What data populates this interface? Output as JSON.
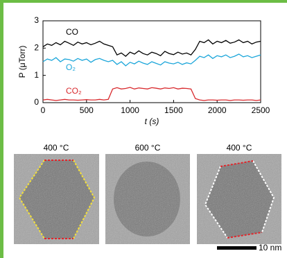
{
  "chart_data": {
    "type": "line",
    "ylabel": "P (μTorr)",
    "xlabel": "t (s)",
    "x": [
      0,
      50,
      100,
      150,
      200,
      250,
      300,
      350,
      400,
      450,
      500,
      550,
      600,
      650,
      700,
      750,
      800,
      850,
      900,
      950,
      1000,
      1050,
      1100,
      1150,
      1200,
      1250,
      1300,
      1350,
      1400,
      1450,
      1500,
      1550,
      1600,
      1650,
      1700,
      1750,
      1800,
      1850,
      1900,
      1950,
      2000,
      2050,
      2100,
      2150,
      2200,
      2250,
      2300,
      2350,
      2400,
      2450,
      2500
    ],
    "series": [
      {
        "name": "CO",
        "color": "#000000",
        "values": [
          2.05,
          2.15,
          2.1,
          2.2,
          2.12,
          2.25,
          2.18,
          2.1,
          2.22,
          2.15,
          2.2,
          2.12,
          2.18,
          2.25,
          2.15,
          2.1,
          2.05,
          1.75,
          1.82,
          1.7,
          1.85,
          1.78,
          1.9,
          1.8,
          1.75,
          1.85,
          1.8,
          1.72,
          1.88,
          1.8,
          1.76,
          1.85,
          1.78,
          1.82,
          1.75,
          1.95,
          2.25,
          2.2,
          2.3,
          2.15,
          2.25,
          2.2,
          2.28,
          2.18,
          2.22,
          2.3,
          2.2,
          2.25,
          2.15,
          2.22,
          2.25
        ]
      },
      {
        "name": "O₂",
        "color": "#1ba6da",
        "values": [
          1.5,
          1.6,
          1.55,
          1.65,
          1.5,
          1.6,
          1.58,
          1.52,
          1.62,
          1.55,
          1.6,
          1.48,
          1.58,
          1.62,
          1.55,
          1.5,
          1.55,
          1.4,
          1.5,
          1.35,
          1.48,
          1.42,
          1.52,
          1.45,
          1.4,
          1.5,
          1.44,
          1.38,
          1.5,
          1.45,
          1.42,
          1.48,
          1.4,
          1.46,
          1.42,
          1.55,
          1.7,
          1.65,
          1.75,
          1.62,
          1.72,
          1.68,
          1.75,
          1.65,
          1.7,
          1.78,
          1.68,
          1.72,
          1.65,
          1.7,
          1.75
        ]
      },
      {
        "name": "CO₂",
        "color": "#d8282c",
        "values": [
          0.1,
          0.12,
          0.1,
          0.08,
          0.1,
          0.12,
          0.1,
          0.1,
          0.09,
          0.1,
          0.11,
          0.1,
          0.1,
          0.12,
          0.1,
          0.12,
          0.5,
          0.55,
          0.5,
          0.52,
          0.56,
          0.5,
          0.54,
          0.52,
          0.5,
          0.55,
          0.53,
          0.5,
          0.54,
          0.52,
          0.55,
          0.5,
          0.53,
          0.52,
          0.5,
          0.15,
          0.1,
          0.08,
          0.1,
          0.1,
          0.09,
          0.1,
          0.1,
          0.08,
          0.1,
          0.1,
          0.09,
          0.1,
          0.1,
          0.08,
          0.1
        ]
      }
    ],
    "xlim": [
      0,
      2500
    ],
    "xticks": [
      0,
      500,
      1000,
      1500,
      2000,
      2500
    ],
    "ylim": [
      0,
      3
    ],
    "yticks": [
      0,
      1,
      2,
      3
    ]
  },
  "panels": [
    {
      "label": "400 °C"
    },
    {
      "label": "600 °C"
    },
    {
      "label": "400 °C"
    }
  ],
  "scale_bar": "10 nm"
}
